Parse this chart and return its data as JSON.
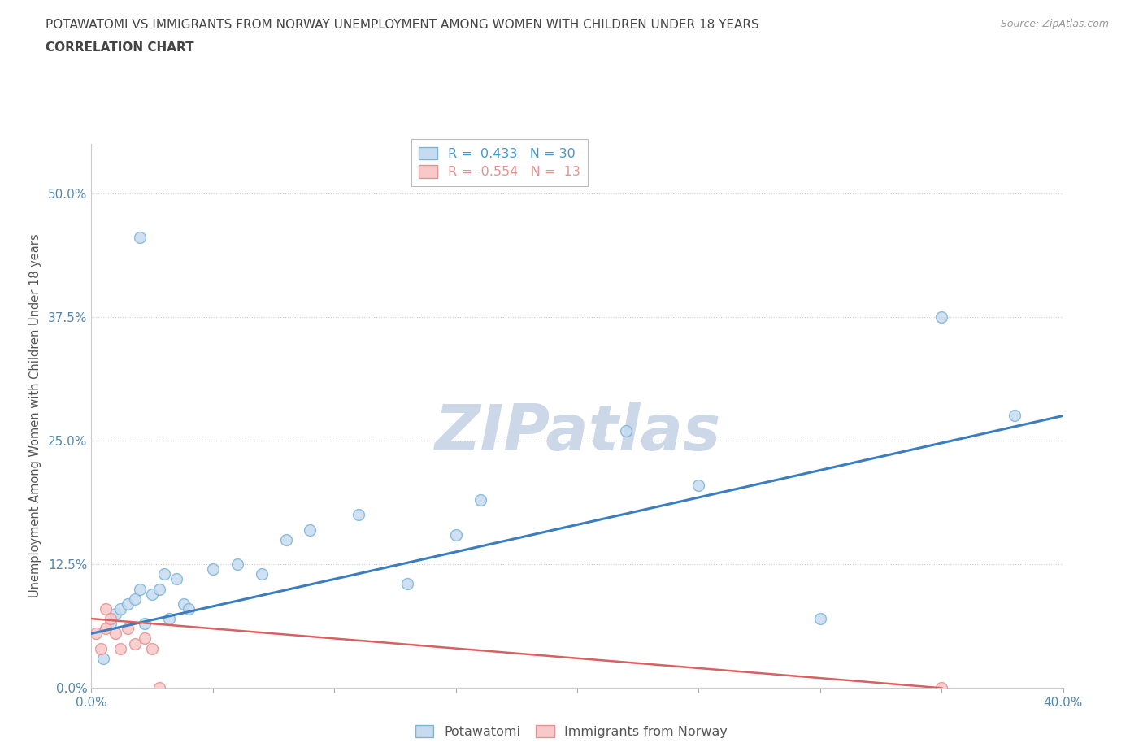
{
  "title_line1": "POTAWATOMI VS IMMIGRANTS FROM NORWAY UNEMPLOYMENT AMONG WOMEN WITH CHILDREN UNDER 18 YEARS",
  "title_line2": "CORRELATION CHART",
  "source_text": "Source: ZipAtlas.com",
  "ylabel": "Unemployment Among Women with Children Under 18 years",
  "xlim": [
    0.0,
    0.4
  ],
  "ylim": [
    0.0,
    0.55
  ],
  "yticks": [
    0.0,
    0.125,
    0.25,
    0.375,
    0.5
  ],
  "ytick_labels": [
    "0.0%",
    "12.5%",
    "25.0%",
    "37.5%",
    "50.0%"
  ],
  "xticks": [
    0.0,
    0.05,
    0.1,
    0.15,
    0.2,
    0.25,
    0.3,
    0.35,
    0.4
  ],
  "xtick_labels": [
    "0.0%",
    "",
    "",
    "",
    "",
    "",
    "",
    "",
    "40.0%"
  ],
  "blue_R": 0.433,
  "blue_N": 30,
  "pink_R": -0.554,
  "pink_N": 13,
  "blue_scatter_x": [
    0.005,
    0.008,
    0.01,
    0.012,
    0.015,
    0.018,
    0.02,
    0.022,
    0.025,
    0.028,
    0.03,
    0.032,
    0.035,
    0.038,
    0.04,
    0.05,
    0.06,
    0.07,
    0.08,
    0.09,
    0.11,
    0.13,
    0.15,
    0.16,
    0.22,
    0.3,
    0.35,
    0.02,
    0.25,
    0.38
  ],
  "blue_scatter_y": [
    0.03,
    0.065,
    0.075,
    0.08,
    0.085,
    0.09,
    0.1,
    0.065,
    0.095,
    0.1,
    0.115,
    0.07,
    0.11,
    0.085,
    0.08,
    0.12,
    0.125,
    0.115,
    0.15,
    0.16,
    0.175,
    0.105,
    0.155,
    0.19,
    0.26,
    0.07,
    0.375,
    0.455,
    0.205,
    0.275
  ],
  "pink_scatter_x": [
    0.002,
    0.004,
    0.006,
    0.006,
    0.008,
    0.01,
    0.012,
    0.015,
    0.018,
    0.022,
    0.025,
    0.028,
    0.35
  ],
  "pink_scatter_y": [
    0.055,
    0.04,
    0.06,
    0.08,
    0.07,
    0.055,
    0.04,
    0.06,
    0.045,
    0.05,
    0.04,
    0.0,
    0.0
  ],
  "blue_line_x": [
    0.0,
    0.4
  ],
  "blue_line_y": [
    0.055,
    0.275
  ],
  "pink_line_x": [
    0.0,
    0.35
  ],
  "pink_line_y": [
    0.07,
    0.0
  ],
  "blue_color": "#7ab4d8",
  "blue_face": "#c6dbef",
  "pink_color": "#e89090",
  "pink_face": "#f9c8c8",
  "blue_line_color": "#3a7ec0",
  "pink_line_color": "#d96060",
  "grid_color": "#cccccc",
  "background_color": "#ffffff",
  "watermark_text": "ZIPatlas",
  "watermark_color": "#ccd8e8",
  "title_color": "#444444",
  "axis_label_color": "#555555",
  "tick_color": "#5588aa",
  "legend_color": "#4499cc"
}
